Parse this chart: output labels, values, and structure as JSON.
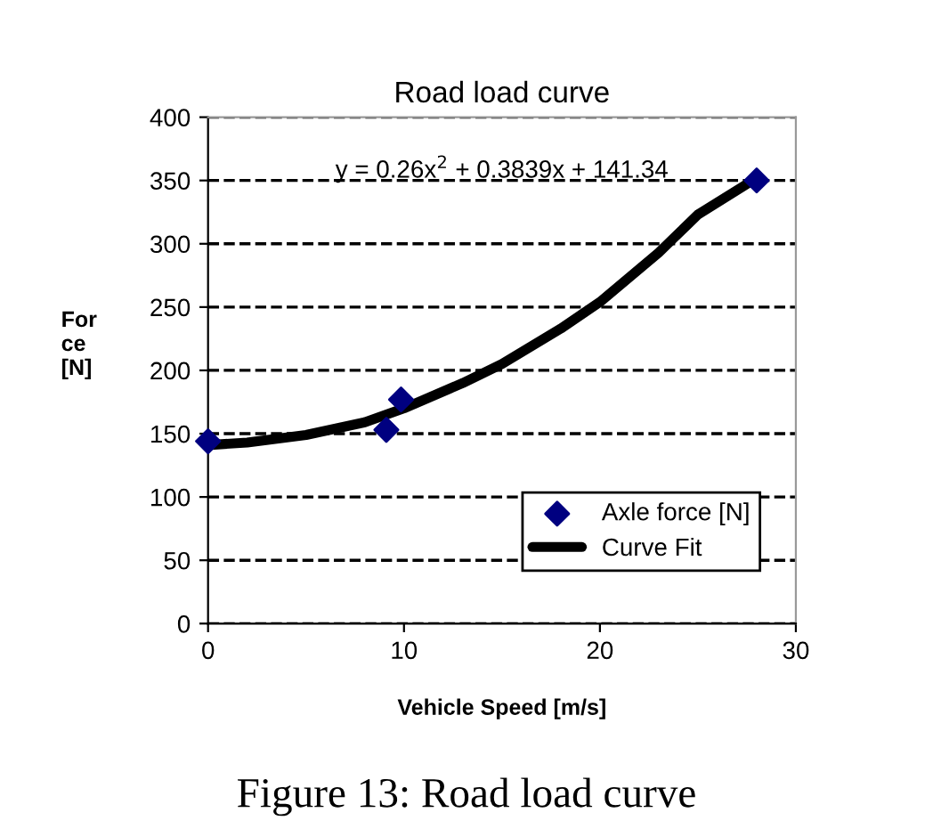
{
  "chart_data": {
    "type": "scatter",
    "title": "Road load curve",
    "xlabel": "Vehicle Speed [m/s]",
    "ylabel": "For\nce\n[N]",
    "annotations": [
      "y = 0.26x$^{2}$ + 0.3839x + 141.34",
      "Figure 13: Road load curve"
    ],
    "series": [
      {
        "name": "Axle force [N]",
        "color": "#000080",
        "marker": "diamond",
        "x": [
          0,
          9.1,
          9.85,
          28
        ],
        "values": [
          144,
          153,
          177,
          350
        ]
      },
      {
        "name": "Curve Fit",
        "type": "line",
        "color": "#000000",
        "marker": "none",
        "line_style": "solid",
        "x": [
          0,
          2,
          5,
          8,
          10,
          13,
          15,
          18,
          20,
          23,
          25,
          28
        ],
        "values": [
          141,
          143,
          149,
          159,
          170,
          190,
          205,
          233,
          254,
          293,
          323,
          352
        ]
      }
    ],
    "xlim": [
      0,
      30
    ],
    "xticks": [
      0,
      10,
      20,
      30
    ],
    "ylim": [
      0,
      400
    ],
    "yticks": [
      0,
      50,
      100,
      150,
      200,
      250,
      300,
      350,
      400
    ],
    "grid": "y",
    "legend": "bottom right"
  }
}
